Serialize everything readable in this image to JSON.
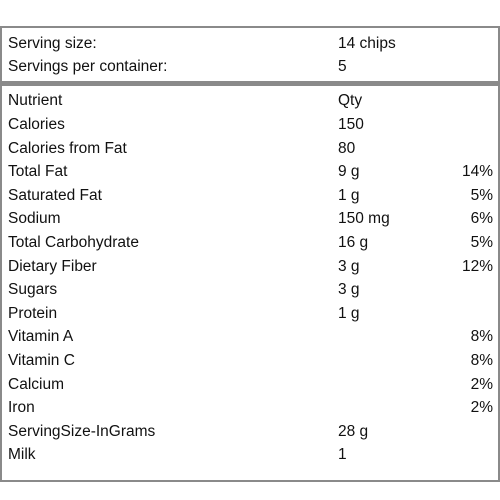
{
  "serving": {
    "size_label": "Serving size:",
    "size_value": "14 chips",
    "per_container_label": "Servings per container:",
    "per_container_value": "5"
  },
  "table": {
    "header": {
      "name": "Nutrient",
      "qty": "Qty",
      "dv": ""
    },
    "rows": [
      {
        "name": "Calories",
        "qty": "150",
        "dv": ""
      },
      {
        "name": "Calories from Fat",
        "qty": "80",
        "dv": ""
      },
      {
        "name": "Total Fat",
        "qty": "9 g",
        "dv": "14%"
      },
      {
        "name": "Saturated Fat",
        "qty": "1 g",
        "dv": "5%"
      },
      {
        "name": "Sodium",
        "qty": "150 mg",
        "dv": "6%"
      },
      {
        "name": "Total Carbohydrate",
        "qty": "16 g",
        "dv": "5%"
      },
      {
        "name": "Dietary Fiber",
        "qty": "3 g",
        "dv": "12%"
      },
      {
        "name": "Sugars",
        "qty": "3 g",
        "dv": ""
      },
      {
        "name": "Protein",
        "qty": "1 g",
        "dv": ""
      },
      {
        "name": "Vitamin A",
        "qty": "",
        "dv": "8%"
      },
      {
        "name": "Vitamin C",
        "qty": "",
        "dv": "8%"
      },
      {
        "name": "Calcium",
        "qty": "",
        "dv": "2%"
      },
      {
        "name": "Iron",
        "qty": "",
        "dv": "2%"
      },
      {
        "name": "ServingSize-InGrams",
        "qty": "28 g",
        "dv": ""
      },
      {
        "name": "Milk",
        "qty": "1",
        "dv": ""
      }
    ]
  },
  "colors": {
    "border": "#8a8a8a",
    "text": "#111111",
    "background": "#ffffff"
  }
}
